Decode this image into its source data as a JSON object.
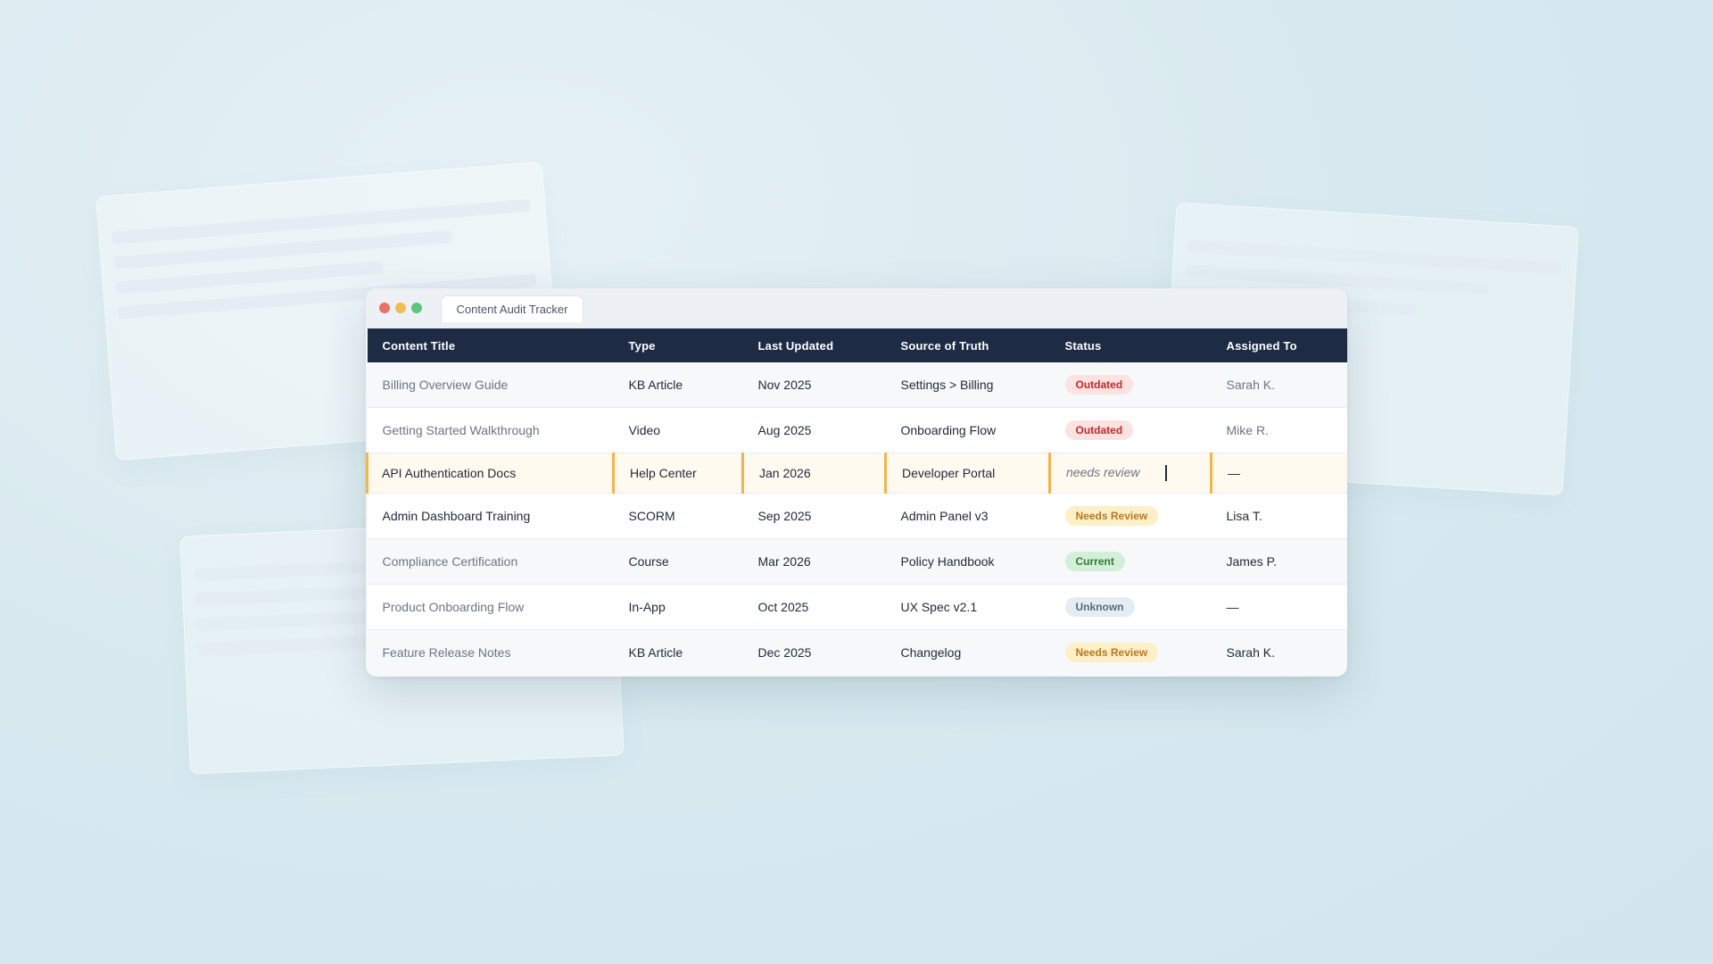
{
  "window": {
    "tab_title": "Content Audit Tracker"
  },
  "table": {
    "headers": [
      "Content Title",
      "Type",
      "Last Updated",
      "Source of Truth",
      "Status",
      "Assigned To"
    ],
    "rows": [
      {
        "title": "Billing Overview Guide",
        "type": "KB Article",
        "updated": "Nov 2025",
        "source": "Settings > Billing",
        "status": "Outdated",
        "assigned": "Sarah K."
      },
      {
        "title": "Getting Started Walkthrough",
        "type": "Video",
        "updated": "Aug 2025",
        "source": "Onboarding Flow",
        "status": "Outdated",
        "assigned": "Mike R."
      },
      {
        "title": "API Authentication Docs",
        "type": "Help Center",
        "updated": "Jan 2026",
        "source": "Developer Portal",
        "status": "needs review",
        "assigned": "—"
      },
      {
        "title": "Admin Dashboard Training",
        "type": "SCORM",
        "updated": "Sep 2025",
        "source": "Admin Panel v3",
        "status": "Needs Review",
        "assigned": "Lisa T."
      },
      {
        "title": "Compliance Certification",
        "type": "Course",
        "updated": "Mar 2026",
        "source": "Policy Handbook",
        "status": "Current",
        "assigned": "James P."
      },
      {
        "title": "Product Onboarding Flow",
        "type": "In-App",
        "updated": "Oct 2025",
        "source": "UX Spec v2.1",
        "status": "Unknown",
        "assigned": "—"
      },
      {
        "title": "Feature Release Notes",
        "type": "KB Article",
        "updated": "Dec 2025",
        "source": "Changelog",
        "status": "Needs Review",
        "assigned": "Sarah K."
      }
    ]
  },
  "colors": {
    "header_bg": "#1d2b45",
    "edit_highlight": "#f2b44c",
    "outdated": "#c62828",
    "needs_review": "#b7791f",
    "current": "#2e7d32",
    "unknown": "#5c6b7a"
  }
}
